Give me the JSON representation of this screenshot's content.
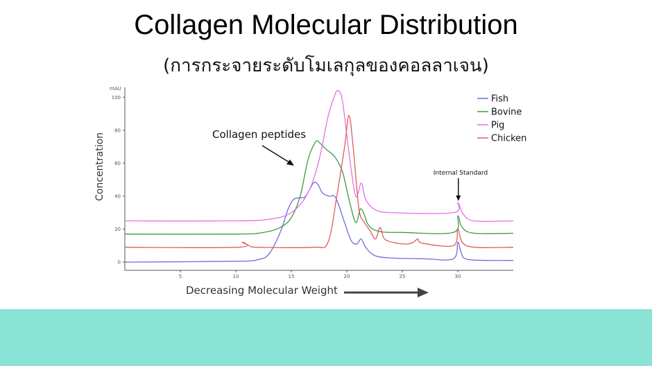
{
  "slide": {
    "title": "Collagen Molecular Distribution",
    "subtitle": "(การกระจายระดับโมเลกุลของคอลลาเจน)",
    "band_color": "#8ae3d4"
  },
  "chart_data": {
    "type": "line",
    "ylabel": "Concentration",
    "xlabel": "Decreasing Molecular Weight",
    "unit": "mAU",
    "xlim": [
      0,
      35
    ],
    "ylim": [
      -5,
      106
    ],
    "x_ticks": [
      "5",
      "10",
      "15",
      "20",
      "25",
      "30"
    ],
    "y_ticks": [
      "0",
      "20",
      "40",
      "60",
      "80",
      "100"
    ],
    "grid": false,
    "legend": "top-right",
    "annotations": [
      "Collagen peptides",
      "Internal Standard"
    ],
    "series": [
      {
        "name": "Fish",
        "color": "#6b6be0",
        "points": [
          [
            0,
            0
          ],
          [
            10,
            0.5
          ],
          [
            12,
            1.5
          ],
          [
            13,
            5
          ],
          [
            14,
            18
          ],
          [
            14.7,
            32
          ],
          [
            15.2,
            38
          ],
          [
            15.8,
            39
          ],
          [
            16.3,
            40
          ],
          [
            17,
            48
          ],
          [
            17.4,
            47
          ],
          [
            17.8,
            42
          ],
          [
            18.4,
            40
          ],
          [
            18.9,
            40
          ],
          [
            19.3,
            34
          ],
          [
            19.8,
            24
          ],
          [
            20.4,
            13
          ],
          [
            20.9,
            11
          ],
          [
            21.3,
            14
          ],
          [
            21.7,
            9
          ],
          [
            22.5,
            4
          ],
          [
            24,
            2.5
          ],
          [
            27,
            2
          ],
          [
            29.6,
            2
          ],
          [
            30.0,
            12
          ],
          [
            30.3,
            6
          ],
          [
            31,
            1.5
          ],
          [
            35,
            1
          ]
        ]
      },
      {
        "name": "Bovine",
        "color": "#3f9a3f",
        "points": [
          [
            0,
            17
          ],
          [
            10,
            17
          ],
          [
            12.5,
            18
          ],
          [
            14,
            21
          ],
          [
            15,
            27
          ],
          [
            15.8,
            40
          ],
          [
            16.5,
            62
          ],
          [
            17.2,
            73
          ],
          [
            17.6,
            72
          ],
          [
            18.2,
            68
          ],
          [
            18.9,
            64
          ],
          [
            19.6,
            55
          ],
          [
            20.2,
            38
          ],
          [
            20.8,
            24
          ],
          [
            21.2,
            32
          ],
          [
            21.5,
            30
          ],
          [
            22,
            22
          ],
          [
            23,
            18.5
          ],
          [
            25,
            18
          ],
          [
            29.6,
            18
          ],
          [
            30.0,
            28
          ],
          [
            30.4,
            21
          ],
          [
            31.5,
            17.5
          ],
          [
            35,
            17.5
          ]
        ]
      },
      {
        "name": "Pig",
        "color": "#e86de8",
        "points": [
          [
            0,
            25
          ],
          [
            10,
            25
          ],
          [
            13,
            26
          ],
          [
            15,
            30
          ],
          [
            16.5,
            42
          ],
          [
            17.5,
            62
          ],
          [
            18.3,
            88
          ],
          [
            18.9,
            101
          ],
          [
            19.2,
            104
          ],
          [
            19.6,
            98
          ],
          [
            20.2,
            66
          ],
          [
            20.8,
            40
          ],
          [
            21.3,
            48
          ],
          [
            21.7,
            38
          ],
          [
            22.5,
            32
          ],
          [
            24,
            30
          ],
          [
            29.6,
            30
          ],
          [
            30.0,
            36
          ],
          [
            30.5,
            29
          ],
          [
            31.5,
            25
          ],
          [
            35,
            25
          ]
        ]
      },
      {
        "name": "Chicken",
        "color": "#e05a5a",
        "points": [
          [
            0,
            9
          ],
          [
            10.2,
            9
          ],
          [
            10.6,
            12
          ],
          [
            11.2,
            10
          ],
          [
            12,
            9
          ],
          [
            17,
            9
          ],
          [
            18.3,
            12
          ],
          [
            19.1,
            40
          ],
          [
            19.8,
            70
          ],
          [
            20.2,
            89
          ],
          [
            20.6,
            68
          ],
          [
            21.1,
            32
          ],
          [
            21.6,
            24
          ],
          [
            22.1,
            19
          ],
          [
            22.6,
            14
          ],
          [
            23,
            21
          ],
          [
            23.4,
            14
          ],
          [
            24.5,
            11.5
          ],
          [
            25.5,
            11
          ],
          [
            26,
            12
          ],
          [
            26.4,
            14
          ],
          [
            26.8,
            11.5
          ],
          [
            29.6,
            10
          ],
          [
            30.0,
            20
          ],
          [
            30.4,
            12
          ],
          [
            31.5,
            9
          ],
          [
            35,
            9
          ]
        ]
      }
    ]
  }
}
